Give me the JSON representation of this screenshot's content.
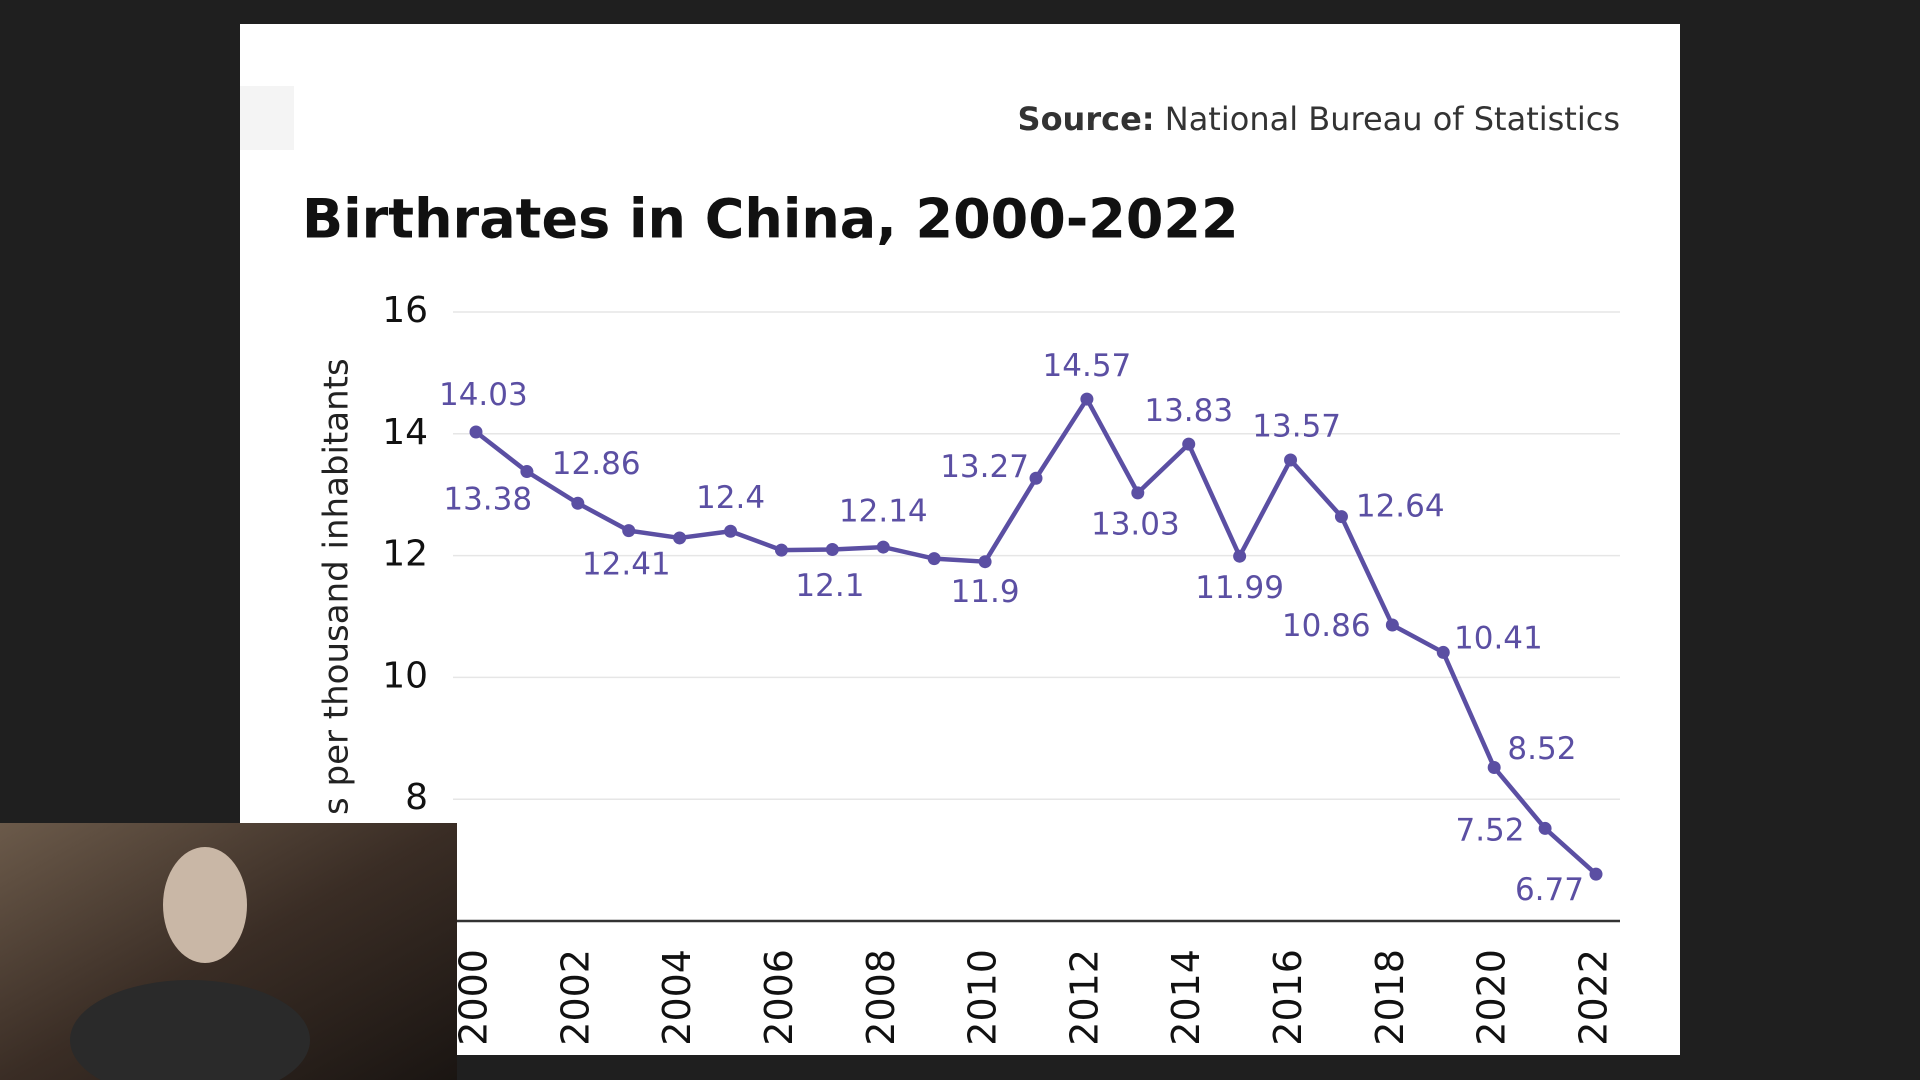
{
  "chart_data": {
    "type": "line",
    "title": "Birthrates in China, 2000-2022",
    "source_label": "Source:",
    "source": "National Bureau of Statistics",
    "ylabel": "s per thousand inhabitants",
    "x": [
      2000,
      2001,
      2002,
      2003,
      2004,
      2005,
      2006,
      2007,
      2008,
      2009,
      2010,
      2011,
      2012,
      2013,
      2014,
      2015,
      2016,
      2017,
      2018,
      2019,
      2020,
      2021,
      2022
    ],
    "series": [
      {
        "name": "Birthrate",
        "color": "#5b4fa3",
        "values": [
          14.03,
          13.38,
          12.86,
          12.41,
          12.29,
          12.4,
          12.09,
          12.1,
          12.14,
          11.95,
          11.9,
          13.27,
          14.57,
          13.03,
          13.83,
          11.99,
          13.57,
          12.64,
          10.86,
          10.41,
          8.52,
          7.52,
          6.77
        ],
        "value_labels": [
          "14.03",
          "13.38",
          "12.86",
          "12.41",
          null,
          "12.4",
          null,
          "12.1",
          "12.14",
          null,
          "11.9",
          "13.27",
          "14.57",
          "13.03",
          "13.83",
          "11.99",
          "13.57",
          "12.64",
          "10.86",
          "10.41",
          "8.52",
          "7.52",
          "6.77"
        ]
      }
    ],
    "xlim": [
      2000,
      2022
    ],
    "xticks": [
      2000,
      2002,
      2004,
      2006,
      2008,
      2010,
      2012,
      2014,
      2016,
      2018,
      2020,
      2022
    ],
    "ylim": [
      6,
      16
    ],
    "yticks": [
      8,
      10,
      12,
      14,
      16
    ],
    "grid": true
  }
}
